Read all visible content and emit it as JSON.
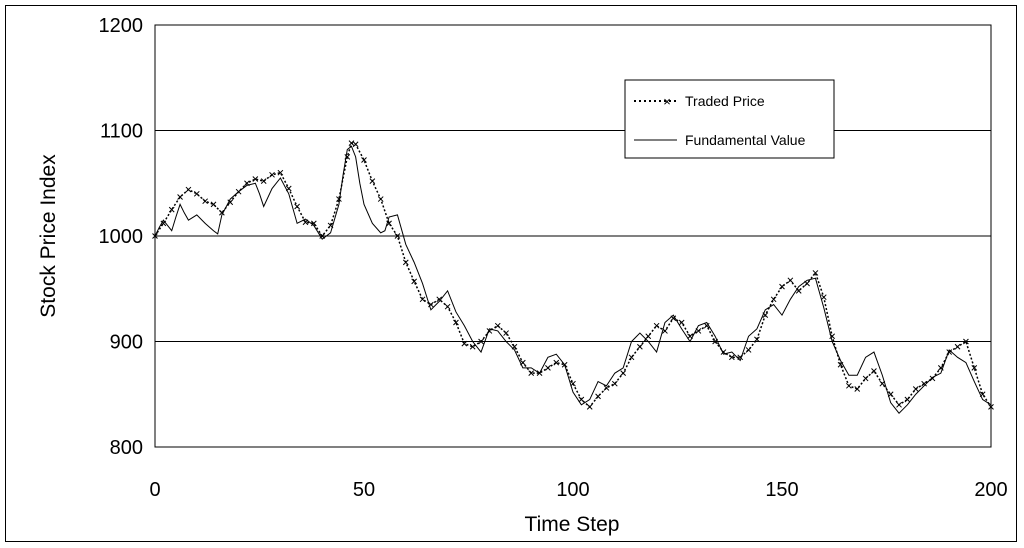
{
  "chart_data": {
    "type": "line",
    "title": "",
    "xlabel": "Time Step",
    "ylabel": "Stock Price Index",
    "xlim": [
      0,
      200
    ],
    "ylim": [
      800,
      1200
    ],
    "xticks": [
      0,
      50,
      100,
      150,
      200
    ],
    "yticks": [
      800,
      900,
      1000,
      1100,
      1200
    ],
    "grid": "horizontal",
    "legend_position": "top-right",
    "series": [
      {
        "name": "Traded Price",
        "style": "dotted-with-x-markers",
        "color": "#000000",
        "points": [
          [
            0,
            1000
          ],
          [
            2,
            1012
          ],
          [
            4,
            1025
          ],
          [
            6,
            1037
          ],
          [
            8,
            1044
          ],
          [
            10,
            1040
          ],
          [
            12,
            1033
          ],
          [
            14,
            1030
          ],
          [
            16,
            1022
          ],
          [
            18,
            1032
          ],
          [
            20,
            1042
          ],
          [
            22,
            1050
          ],
          [
            24,
            1054
          ],
          [
            26,
            1052
          ],
          [
            28,
            1058
          ],
          [
            30,
            1060
          ],
          [
            32,
            1045
          ],
          [
            34,
            1028
          ],
          [
            36,
            1013
          ],
          [
            38,
            1012
          ],
          [
            40,
            1000
          ],
          [
            42,
            1010
          ],
          [
            44,
            1035
          ],
          [
            46,
            1075
          ],
          [
            47,
            1088
          ],
          [
            48,
            1087
          ],
          [
            50,
            1072
          ],
          [
            52,
            1052
          ],
          [
            54,
            1035
          ],
          [
            56,
            1012
          ],
          [
            58,
            1000
          ],
          [
            60,
            975
          ],
          [
            62,
            957
          ],
          [
            64,
            940
          ],
          [
            66,
            935
          ],
          [
            68,
            940
          ],
          [
            70,
            933
          ],
          [
            72,
            918
          ],
          [
            74,
            898
          ],
          [
            76,
            895
          ],
          [
            78,
            900
          ],
          [
            80,
            910
          ],
          [
            82,
            915
          ],
          [
            84,
            908
          ],
          [
            86,
            895
          ],
          [
            88,
            880
          ],
          [
            90,
            870
          ],
          [
            92,
            870
          ],
          [
            94,
            875
          ],
          [
            96,
            880
          ],
          [
            98,
            878
          ],
          [
            100,
            860
          ],
          [
            102,
            845
          ],
          [
            104,
            838
          ],
          [
            106,
            848
          ],
          [
            108,
            856
          ],
          [
            110,
            860
          ],
          [
            112,
            870
          ],
          [
            114,
            885
          ],
          [
            116,
            895
          ],
          [
            118,
            905
          ],
          [
            120,
            915
          ],
          [
            122,
            910
          ],
          [
            124,
            922
          ],
          [
            126,
            918
          ],
          [
            128,
            905
          ],
          [
            130,
            910
          ],
          [
            132,
            915
          ],
          [
            134,
            900
          ],
          [
            136,
            890
          ],
          [
            138,
            885
          ],
          [
            140,
            885
          ],
          [
            142,
            892
          ],
          [
            144,
            902
          ],
          [
            146,
            925
          ],
          [
            148,
            940
          ],
          [
            150,
            952
          ],
          [
            152,
            958
          ],
          [
            154,
            948
          ],
          [
            156,
            955
          ],
          [
            158,
            965
          ],
          [
            160,
            942
          ],
          [
            162,
            905
          ],
          [
            164,
            878
          ],
          [
            166,
            858
          ],
          [
            168,
            855
          ],
          [
            170,
            865
          ],
          [
            172,
            872
          ],
          [
            174,
            860
          ],
          [
            176,
            850
          ],
          [
            178,
            840
          ],
          [
            180,
            845
          ],
          [
            182,
            855
          ],
          [
            184,
            860
          ],
          [
            186,
            865
          ],
          [
            188,
            875
          ],
          [
            190,
            890
          ],
          [
            192,
            895
          ],
          [
            194,
            900
          ],
          [
            196,
            875
          ],
          [
            198,
            850
          ],
          [
            200,
            838
          ]
        ]
      },
      {
        "name": "Fundamental Value",
        "style": "solid",
        "color": "#000000",
        "points": [
          [
            0,
            1000
          ],
          [
            1,
            1008
          ],
          [
            2,
            1015
          ],
          [
            3,
            1010
          ],
          [
            4,
            1005
          ],
          [
            5,
            1018
          ],
          [
            6,
            1030
          ],
          [
            7,
            1022
          ],
          [
            8,
            1015
          ],
          [
            10,
            1020
          ],
          [
            12,
            1012
          ],
          [
            14,
            1005
          ],
          [
            15,
            1002
          ],
          [
            16,
            1020
          ],
          [
            18,
            1035
          ],
          [
            20,
            1042
          ],
          [
            22,
            1048
          ],
          [
            24,
            1050
          ],
          [
            25,
            1040
          ],
          [
            26,
            1028
          ],
          [
            28,
            1045
          ],
          [
            30,
            1055
          ],
          [
            32,
            1040
          ],
          [
            34,
            1012
          ],
          [
            36,
            1016
          ],
          [
            38,
            1010
          ],
          [
            40,
            997
          ],
          [
            42,
            1003
          ],
          [
            44,
            1030
          ],
          [
            45,
            1058
          ],
          [
            46,
            1082
          ],
          [
            47,
            1085
          ],
          [
            48,
            1075
          ],
          [
            49,
            1050
          ],
          [
            50,
            1030
          ],
          [
            52,
            1012
          ],
          [
            54,
            1003
          ],
          [
            55,
            1005
          ],
          [
            56,
            1018
          ],
          [
            58,
            1020
          ],
          [
            60,
            992
          ],
          [
            62,
            975
          ],
          [
            64,
            955
          ],
          [
            66,
            930
          ],
          [
            68,
            938
          ],
          [
            70,
            948
          ],
          [
            72,
            928
          ],
          [
            74,
            915
          ],
          [
            76,
            900
          ],
          [
            78,
            890
          ],
          [
            80,
            912
          ],
          [
            82,
            910
          ],
          [
            84,
            900
          ],
          [
            86,
            892
          ],
          [
            88,
            875
          ],
          [
            90,
            875
          ],
          [
            92,
            870
          ],
          [
            94,
            885
          ],
          [
            96,
            888
          ],
          [
            98,
            878
          ],
          [
            100,
            852
          ],
          [
            102,
            840
          ],
          [
            104,
            845
          ],
          [
            106,
            862
          ],
          [
            108,
            858
          ],
          [
            110,
            870
          ],
          [
            112,
            875
          ],
          [
            114,
            900
          ],
          [
            116,
            908
          ],
          [
            118,
            900
          ],
          [
            120,
            890
          ],
          [
            122,
            918
          ],
          [
            124,
            925
          ],
          [
            126,
            912
          ],
          [
            128,
            900
          ],
          [
            130,
            915
          ],
          [
            132,
            918
          ],
          [
            134,
            905
          ],
          [
            136,
            888
          ],
          [
            138,
            890
          ],
          [
            140,
            882
          ],
          [
            142,
            905
          ],
          [
            144,
            912
          ],
          [
            146,
            930
          ],
          [
            148,
            935
          ],
          [
            150,
            925
          ],
          [
            152,
            940
          ],
          [
            154,
            952
          ],
          [
            156,
            958
          ],
          [
            158,
            960
          ],
          [
            160,
            932
          ],
          [
            162,
            900
          ],
          [
            164,
            882
          ],
          [
            166,
            868
          ],
          [
            168,
            868
          ],
          [
            170,
            885
          ],
          [
            172,
            890
          ],
          [
            174,
            868
          ],
          [
            176,
            842
          ],
          [
            178,
            832
          ],
          [
            180,
            840
          ],
          [
            182,
            850
          ],
          [
            184,
            858
          ],
          [
            186,
            866
          ],
          [
            188,
            870
          ],
          [
            190,
            892
          ],
          [
            192,
            885
          ],
          [
            194,
            880
          ],
          [
            196,
            862
          ],
          [
            198,
            845
          ],
          [
            200,
            840
          ]
        ]
      }
    ]
  }
}
